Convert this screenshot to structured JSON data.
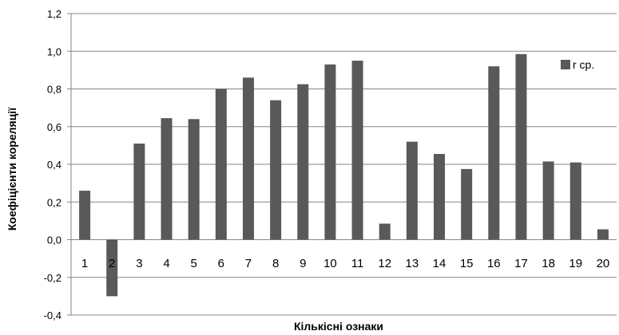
{
  "chart_data": {
    "type": "bar",
    "categories": [
      "1",
      "2",
      "3",
      "4",
      "5",
      "6",
      "7",
      "8",
      "9",
      "10",
      "11",
      "12",
      "13",
      "14",
      "15",
      "16",
      "17",
      "18",
      "19",
      "20"
    ],
    "series": [
      {
        "name": "r ср.",
        "values": [
          0.26,
          -0.3,
          0.51,
          0.645,
          0.64,
          0.8,
          0.86,
          0.74,
          0.825,
          0.93,
          0.95,
          0.085,
          0.52,
          0.455,
          0.375,
          0.92,
          0.985,
          0.415,
          0.41,
          0.055
        ],
        "color": "#595959"
      }
    ],
    "xlabel": "Кількісні ознаки",
    "ylabel": "Коефіцієнти кореляції",
    "ylim": [
      -0.4,
      1.2
    ],
    "yticks": [
      "-0,4",
      "-0,2",
      "0,0",
      "0,2",
      "0,4",
      "0,6",
      "0,8",
      "1,0",
      "1,2"
    ],
    "grid": true,
    "legend_position": "top-right",
    "gridline_color": "#868686"
  }
}
